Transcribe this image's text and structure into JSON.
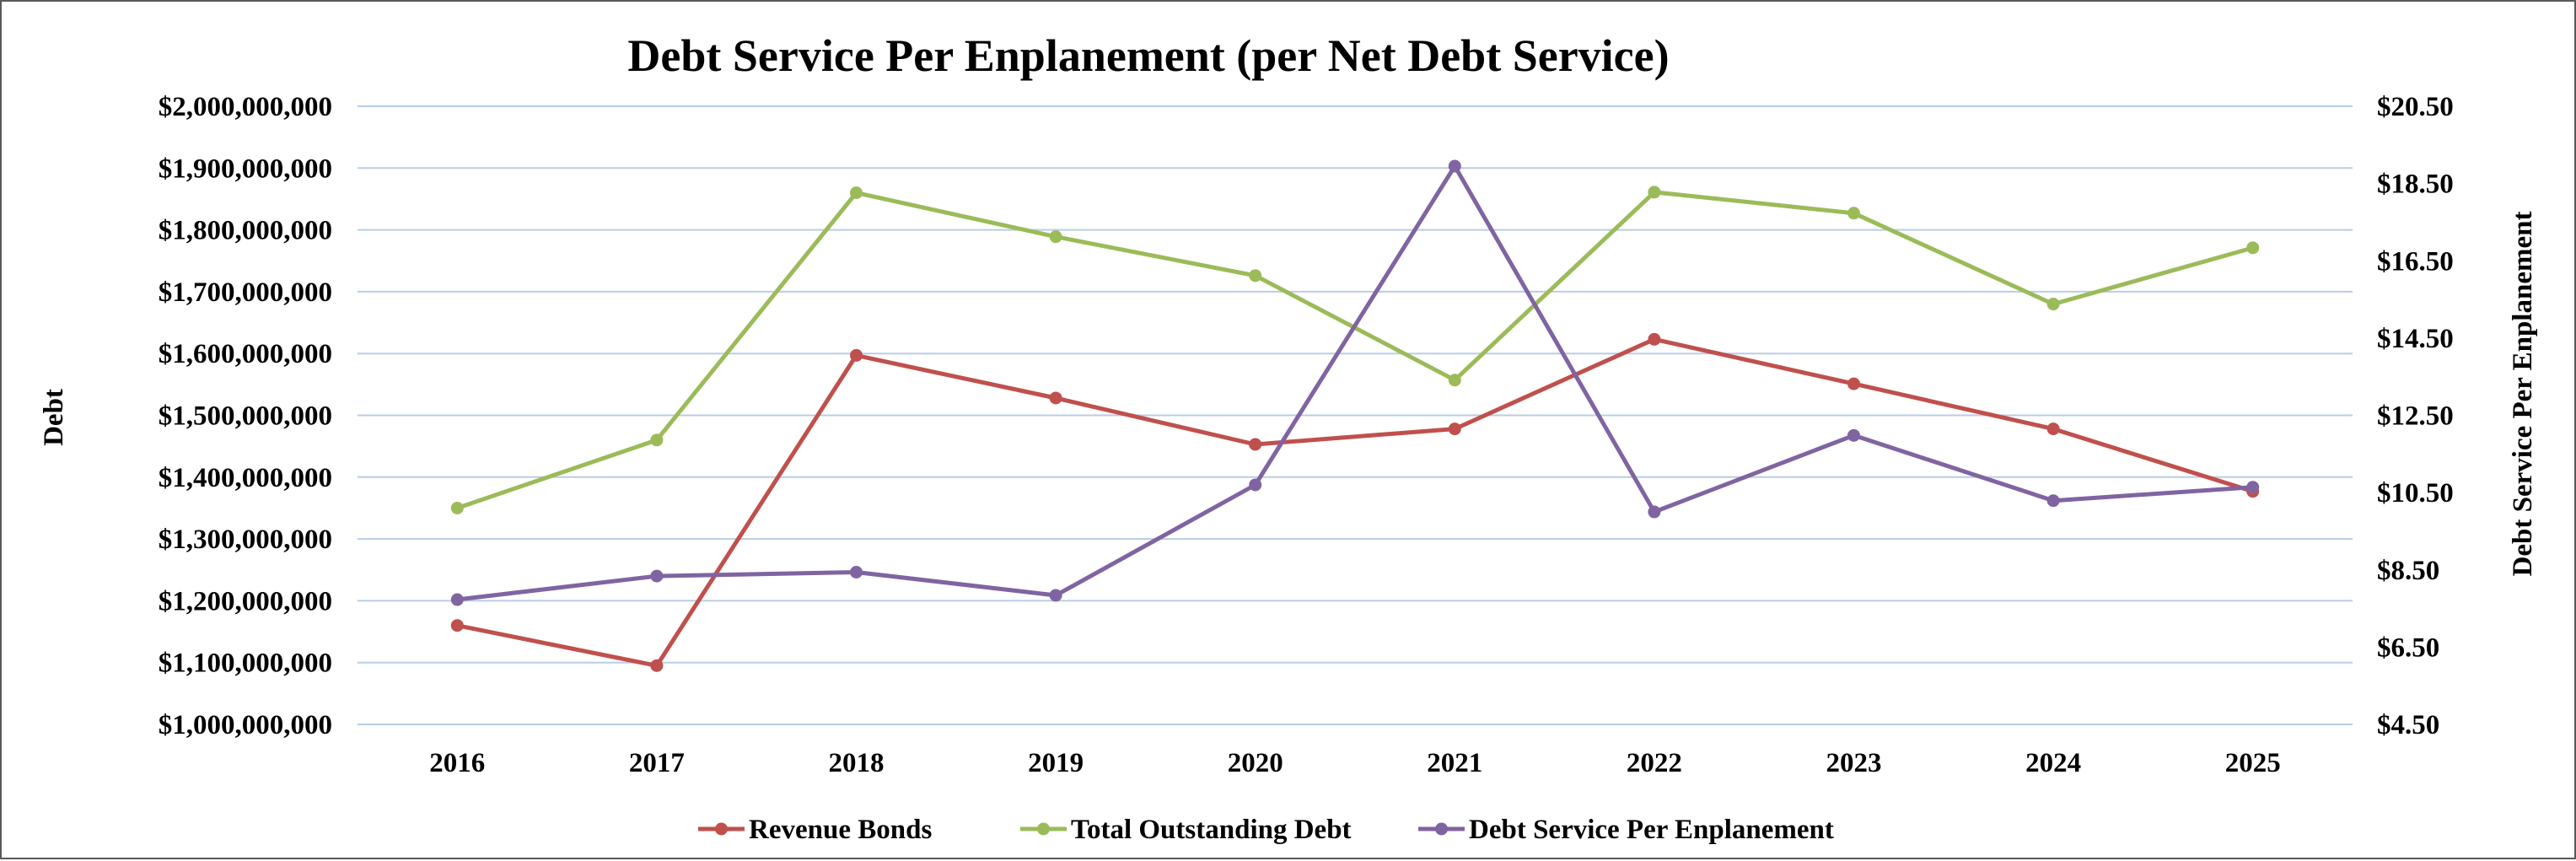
{
  "chart_data": {
    "type": "line",
    "title": "Debt Service Per Enplanement (per Net Debt Service)",
    "y_left_label": "Debt",
    "y_right_label": "Debt Service Per Enplanement",
    "categories": [
      "2016",
      "2017",
      "2018",
      "2019",
      "2020",
      "2021",
      "2022",
      "2023",
      "2024",
      "2025"
    ],
    "y_left_range": [
      1000000000,
      2000000000
    ],
    "y_left_ticks": [
      "$1,000,000,000",
      "$1,100,000,000",
      "$1,200,000,000",
      "$1,300,000,000",
      "$1,400,000,000",
      "$1,500,000,000",
      "$1,600,000,000",
      "$1,700,000,000",
      "$1,800,000,000",
      "$1,900,000,000",
      "$2,000,000,000"
    ],
    "y_right_range": [
      4.5,
      20.5
    ],
    "y_right_ticks": [
      "$4.50",
      "$6.50",
      "$8.50",
      "$10.50",
      "$12.50",
      "$14.50",
      "$16.50",
      "$18.50",
      "$20.50"
    ],
    "grid": true,
    "legend_position": "bottom",
    "series": [
      {
        "name": "Revenue Bonds",
        "axis": "left",
        "color": "#C0504D",
        "values": [
          1160000000,
          1095000000,
          1597000000,
          1528000000,
          1453000000,
          1478000000,
          1623000000,
          1551000000,
          1478000000,
          1377000000
        ]
      },
      {
        "name": "Total Outstanding Debt",
        "axis": "left",
        "color": "#9BBB59",
        "values": [
          1350000000,
          1460000000,
          1860000000,
          1789000000,
          1726000000,
          1557000000,
          1861000000,
          1827000000,
          1680000000,
          1771000000
        ]
      },
      {
        "name": "Debt Service Per Enplanement",
        "axis": "right",
        "color": "#8064A2",
        "values": [
          7.73,
          8.34,
          8.44,
          7.84,
          10.7,
          18.95,
          10.0,
          11.98,
          10.29,
          10.64
        ]
      }
    ]
  }
}
